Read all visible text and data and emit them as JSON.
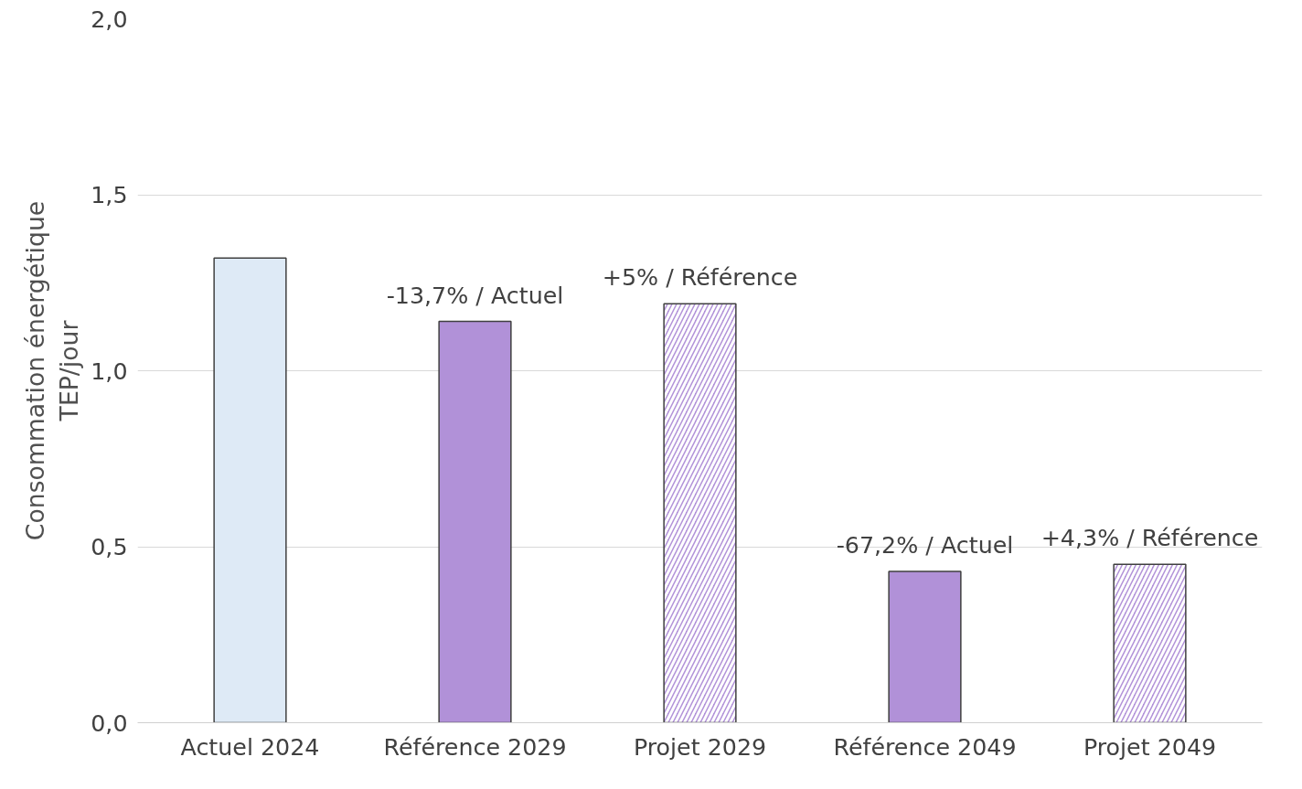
{
  "chart_data": {
    "type": "bar",
    "ylabel": "Consommation énergétique\nTEP/jour",
    "categories": [
      "Actuel 2024",
      "Référence 2029",
      "Projet 2029",
      "Référence 2049",
      "Projet 2049"
    ],
    "series": [
      {
        "colors": [
          "#deeaf6",
          "#b191d8",
          null,
          "#b191d8",
          null
        ],
        "values": [
          1.32,
          1.14,
          null,
          0.43,
          null
        ]
      },
      {
        "color": "#b191d8",
        "values": [
          null,
          null,
          1.19,
          null,
          0.45
        ]
      }
    ],
    "ylim": [
      0,
      2
    ],
    "yticks": [
      {
        "value": 0,
        "label": "0,0"
      },
      {
        "value": 0.5,
        "label": "0,5"
      },
      {
        "value": 1,
        "label": "1,0"
      },
      {
        "value": 1.5,
        "label": "1,5"
      },
      {
        "value": 2,
        "label": "2,0"
      }
    ],
    "grid": "y",
    "annotations": [
      {
        "text": "-13,7% / Actuel",
        "x": "Référence 2029",
        "y": 1.14
      },
      {
        "text": "+5% / Référence",
        "x": "Projet 2029",
        "y": 1.19
      },
      {
        "text": "-67,2% / Actuel",
        "x": "Référence 2049",
        "y": 0.43
      },
      {
        "text": "+4,3% / Référence",
        "x": "Projet 2049",
        "y": 0.45
      }
    ]
  }
}
